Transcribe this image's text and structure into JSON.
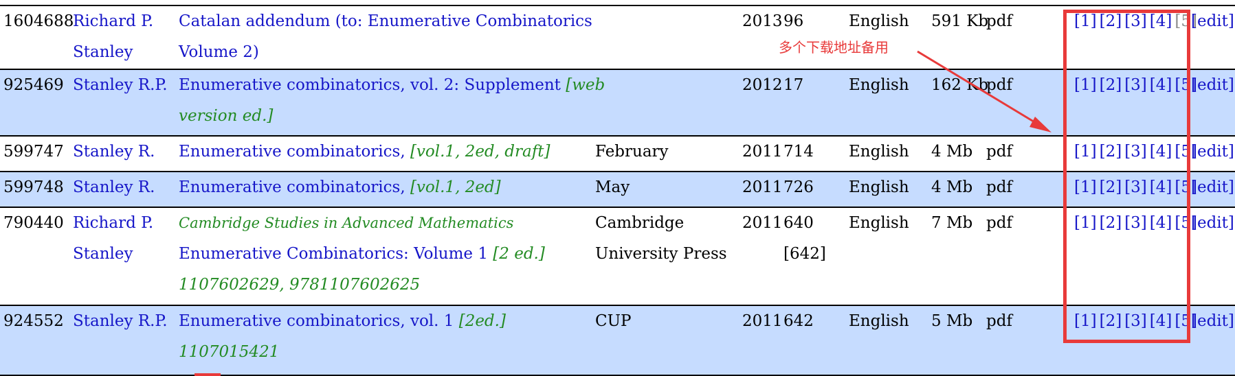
{
  "rows": [
    {
      "id": "1604688",
      "author": [
        "Richard P.",
        "Stanley"
      ],
      "title_lines": [
        [
          {
            "t": "Catalan addendum (to: Enumerative Combinatorics",
            "s": "title"
          }
        ],
        [
          {
            "t": "Volume 2)",
            "s": "title"
          }
        ]
      ],
      "publisher": [],
      "year": "2013",
      "pages": [
        "96"
      ],
      "language": "English",
      "size": "591 Kb",
      "ext": "pdf",
      "links": [
        "[1]",
        "[2]",
        "[3]",
        "[4]",
        "[5]"
      ],
      "dim_last": true,
      "edit": "[edit]",
      "alt": false
    },
    {
      "id": "925469",
      "author": [
        "Stanley R.P."
      ],
      "title_lines": [
        [
          {
            "t": "Enumerative combinatorics, vol. 2: Supplement ",
            "s": "title"
          },
          {
            "t": "[web",
            "s": "green"
          }
        ],
        [
          {
            "t": "version ed.]",
            "s": "green"
          }
        ]
      ],
      "publisher": [],
      "year": "2012",
      "pages": [
        "17"
      ],
      "language": "English",
      "size": "162 Kb",
      "ext": "pdf",
      "links": [
        "[1]",
        "[2]",
        "[3]",
        "[4]",
        "[5]"
      ],
      "dim_last": false,
      "edit": "[edit]",
      "alt": true
    },
    {
      "id": "599747",
      "author": [
        "Stanley R."
      ],
      "title_lines": [
        [
          {
            "t": "Enumerative combinatorics, ",
            "s": "title"
          },
          {
            "t": "[vol.1, 2ed, draft]",
            "s": "green"
          }
        ]
      ],
      "publisher": [
        "February"
      ],
      "year": "2011",
      "pages": [
        "714"
      ],
      "language": "English",
      "size": "4 Mb",
      "ext": "pdf",
      "links": [
        "[1]",
        "[2]",
        "[3]",
        "[4]",
        "[5]"
      ],
      "dim_last": false,
      "edit": "[edit]",
      "alt": false
    },
    {
      "id": "599748",
      "author": [
        "Stanley R."
      ],
      "title_lines": [
        [
          {
            "t": "Enumerative combinatorics, ",
            "s": "title"
          },
          {
            "t": "[vol.1, 2ed]",
            "s": "green"
          }
        ]
      ],
      "publisher": [
        "May"
      ],
      "year": "2011",
      "pages": [
        "726"
      ],
      "language": "English",
      "size": "4 Mb",
      "ext": "pdf",
      "links": [
        "[1]",
        "[2]",
        "[3]",
        "[4]",
        "[5]"
      ],
      "dim_last": false,
      "edit": "[edit]",
      "alt": true
    },
    {
      "id": "790440",
      "author": [
        "Richard P.",
        "Stanley"
      ],
      "title_lines": [
        [
          {
            "t": "Cambridge Studies in Advanced Mathematics",
            "s": "green sub"
          }
        ],
        [
          {
            "t": "Enumerative Combinatorics: Volume 1 ",
            "s": "title"
          },
          {
            "t": "[2 ed.]",
            "s": "green"
          }
        ],
        [
          {
            "t": "1107602629, 9781107602625",
            "s": "green"
          }
        ]
      ],
      "publisher": [
        "Cambridge",
        "University Press"
      ],
      "year": "2011",
      "pages": [
        "640",
        "[642]"
      ],
      "language": "English",
      "size": "7 Mb",
      "ext": "pdf",
      "links": [
        "[1]",
        "[2]",
        "[3]",
        "[4]",
        "[5]"
      ],
      "dim_last": false,
      "edit": "[edit]",
      "alt": false
    },
    {
      "id": "924552",
      "author": [
        "Stanley R.P."
      ],
      "title_lines": [
        [
          {
            "t": "Enumerative combinatorics, vol. 1 ",
            "s": "title"
          },
          {
            "t": "[2ed.]",
            "s": "green"
          }
        ],
        [
          {
            "t": "1107015421",
            "s": "green"
          }
        ]
      ],
      "publisher": [
        "CUP"
      ],
      "year": "2011",
      "pages": [
        "642"
      ],
      "language": "English",
      "size": "5 Mb",
      "ext": "pdf",
      "links": [
        "[1]",
        "[2]",
        "[3]",
        "[4]",
        "[5]"
      ],
      "dim_last": false,
      "edit": "[edit]",
      "alt": true
    }
  ],
  "annotation": {
    "text": "多个下载地址备用",
    "color": "#e83a3a"
  },
  "colors": {
    "link": "#1616c8",
    "note": "#238b23",
    "row_alt": "#c6dcff"
  }
}
